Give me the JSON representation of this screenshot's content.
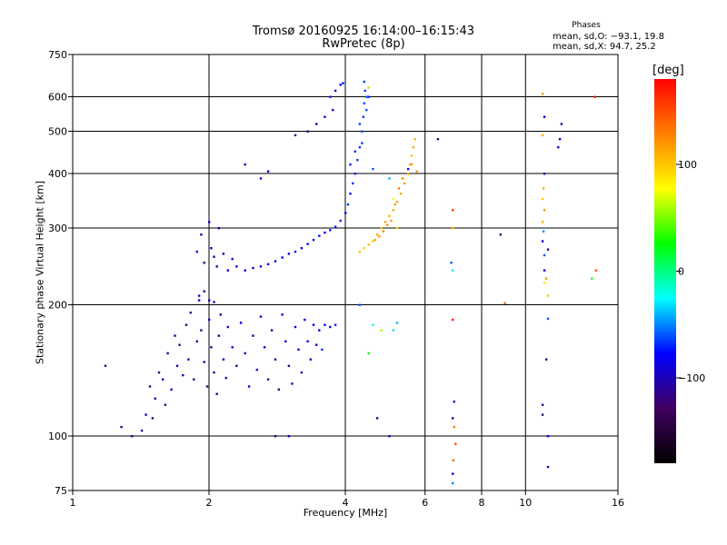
{
  "header": {
    "title_line1": "Tromsø 20160925 16:14:00–16:15:43",
    "title_line2": "RwPretec (8p)"
  },
  "phase_info": {
    "heading": "Phases",
    "o_line": "mean, sd,O:  −93.1, 19.8",
    "x_line": "mean, sd,X:  94.7, 25.2"
  },
  "colorbar": {
    "label": "[deg]",
    "range": [
      -180,
      180
    ],
    "ticks": [
      "100",
      "0",
      "−100"
    ],
    "tick_values": [
      100,
      0,
      -100
    ],
    "colors": [
      "#ff0000",
      "#ff8000",
      "#ffff00",
      "#00ff00",
      "#00ffff",
      "#0000ff",
      "#400060",
      "#000000"
    ]
  },
  "chart_data": {
    "type": "scatter",
    "xlabel": "Frequency [MHz]",
    "ylabel": "Stationary phase Virtual Height [km]",
    "x_scale": "log",
    "y_scale": "log",
    "xlim": [
      1,
      16
    ],
    "ylim": [
      75,
      750
    ],
    "x_ticks": [
      1,
      2,
      4,
      6,
      8,
      10,
      16
    ],
    "x_tick_labels": [
      "1",
      "2",
      "4",
      "6",
      "8",
      "10",
      "16"
    ],
    "y_ticks": [
      75,
      100,
      200,
      300,
      400,
      500,
      600,
      750
    ],
    "y_tick_labels": [
      "75",
      "100",
      "200",
      "300",
      "400",
      "500",
      "600",
      "750"
    ],
    "grid": true,
    "series": [
      {
        "values_format": "[frequency_MHz, virtual_height_km, phase_deg]",
        "points": [
          [
            1.18,
            145,
            -115
          ],
          [
            1.28,
            105,
            -110
          ],
          [
            1.35,
            100,
            -120
          ],
          [
            1.42,
            103,
            -105
          ],
          [
            1.45,
            112,
            -95
          ],
          [
            1.48,
            130,
            -110
          ],
          [
            1.5,
            110,
            -125
          ],
          [
            1.52,
            122,
            -100
          ],
          [
            1.55,
            140,
            -112
          ],
          [
            1.58,
            135,
            -95
          ],
          [
            1.6,
            118,
            -120
          ],
          [
            1.62,
            155,
            -108
          ],
          [
            1.65,
            128,
            -102
          ],
          [
            1.68,
            170,
            -115
          ],
          [
            1.7,
            145,
            -98
          ],
          [
            1.72,
            162,
            -122
          ],
          [
            1.75,
            138,
            -100
          ],
          [
            1.78,
            180,
            -118
          ],
          [
            1.8,
            150,
            -95
          ],
          [
            1.82,
            192,
            -110
          ],
          [
            1.85,
            135,
            -125
          ],
          [
            1.88,
            165,
            -104
          ],
          [
            1.9,
            205,
            -90
          ],
          [
            1.92,
            175,
            -112
          ],
          [
            1.95,
            148,
            -100
          ],
          [
            1.98,
            130,
            -118
          ],
          [
            2.0,
            185,
            -96
          ],
          [
            2.02,
            160,
            -108
          ],
          [
            2.05,
            140,
            -102
          ],
          [
            2.08,
            125,
            -115
          ],
          [
            2.1,
            170,
            -99
          ],
          [
            2.12,
            190,
            -106
          ],
          [
            2.15,
            150,
            -92
          ],
          [
            2.18,
            136,
            -110
          ],
          [
            2.2,
            178,
            -100
          ],
          [
            2.25,
            160,
            -95
          ],
          [
            2.3,
            145,
            -108
          ],
          [
            2.35,
            182,
            -90
          ],
          [
            2.4,
            155,
            -102
          ],
          [
            2.45,
            130,
            -96
          ],
          [
            2.5,
            170,
            -112
          ],
          [
            2.55,
            142,
            -88
          ],
          [
            2.6,
            188,
            -100
          ],
          [
            2.65,
            160,
            -94
          ],
          [
            2.7,
            135,
            -106
          ],
          [
            2.75,
            175,
            -90
          ],
          [
            2.8,
            150,
            -98
          ],
          [
            2.85,
            128,
            -104
          ],
          [
            2.9,
            190,
            -92
          ],
          [
            2.95,
            165,
            -88
          ],
          [
            3.0,
            145,
            -100
          ],
          [
            3.05,
            132,
            -96
          ],
          [
            3.1,
            178,
            -84
          ],
          [
            3.15,
            158,
            -92
          ],
          [
            3.2,
            140,
            -98
          ],
          [
            3.25,
            185,
            -80
          ],
          [
            3.3,
            165,
            -90
          ],
          [
            3.35,
            150,
            -86
          ],
          [
            3.4,
            180,
            -78
          ],
          [
            3.45,
            162,
            -88
          ],
          [
            3.5,
            175,
            -82
          ],
          [
            3.55,
            158,
            -70
          ],
          [
            3.6,
            180,
            -75
          ],
          [
            3.7,
            178,
            -80
          ],
          [
            3.8,
            180,
            -72
          ],
          [
            1.9,
            210,
            -98
          ],
          [
            2.0,
            205,
            -104
          ],
          [
            1.95,
            215,
            -110
          ],
          [
            2.05,
            203,
            -100
          ],
          [
            1.88,
            265,
            -100
          ],
          [
            1.92,
            290,
            -95
          ],
          [
            1.95,
            250,
            -108
          ],
          [
            2.0,
            310,
            -92
          ],
          [
            2.02,
            270,
            -102
          ],
          [
            2.05,
            258,
            -98
          ],
          [
            2.08,
            245,
            -96
          ],
          [
            2.1,
            300,
            -90
          ],
          [
            2.15,
            262,
            -100
          ],
          [
            2.2,
            240,
            -94
          ],
          [
            2.25,
            255,
            -88
          ],
          [
            2.3,
            245,
            -92
          ],
          [
            2.4,
            240,
            -86
          ],
          [
            2.5,
            243,
            -90
          ],
          [
            2.6,
            245,
            -84
          ],
          [
            2.7,
            248,
            -82
          ],
          [
            2.8,
            252,
            -86
          ],
          [
            2.9,
            257,
            -80
          ],
          [
            3.0,
            262,
            -84
          ],
          [
            3.1,
            265,
            -78
          ],
          [
            3.2,
            270,
            -82
          ],
          [
            3.3,
            276,
            -76
          ],
          [
            3.4,
            282,
            -80
          ],
          [
            3.5,
            288,
            -74
          ],
          [
            3.6,
            293,
            -78
          ],
          [
            3.7,
            297,
            -72
          ],
          [
            3.8,
            302,
            -76
          ],
          [
            3.9,
            312,
            -70
          ],
          [
            4.0,
            325,
            -74
          ],
          [
            4.05,
            340,
            -68
          ],
          [
            4.1,
            360,
            -72
          ],
          [
            4.15,
            380,
            -66
          ],
          [
            4.2,
            400,
            -70
          ],
          [
            4.25,
            430,
            -64
          ],
          [
            4.3,
            460,
            -68
          ],
          [
            4.35,
            500,
            -62
          ],
          [
            4.38,
            540,
            -66
          ],
          [
            4.4,
            580,
            -60
          ],
          [
            4.42,
            620,
            -64
          ],
          [
            4.45,
            600,
            -58
          ],
          [
            4.1,
            420,
            -70
          ],
          [
            4.2,
            450,
            -66
          ],
          [
            4.3,
            520,
            -62
          ],
          [
            4.45,
            560,
            -60
          ],
          [
            4.35,
            470,
            -64
          ],
          [
            4.3,
            265,
            100
          ],
          [
            4.4,
            270,
            95
          ],
          [
            4.5,
            275,
            105
          ],
          [
            4.6,
            280,
            98
          ],
          [
            4.7,
            290,
            110
          ],
          [
            4.8,
            300,
            102
          ],
          [
            4.9,
            310,
            115
          ],
          [
            5.0,
            320,
            108
          ],
          [
            5.1,
            330,
            112
          ],
          [
            5.2,
            345,
            118
          ],
          [
            5.3,
            360,
            110
          ],
          [
            5.4,
            380,
            120
          ],
          [
            5.5,
            400,
            115
          ],
          [
            5.55,
            420,
            108
          ],
          [
            5.6,
            440,
            100
          ],
          [
            5.65,
            460,
            112
          ],
          [
            5.7,
            480,
            105
          ],
          [
            5.75,
            405,
            118
          ],
          [
            5.35,
            390,
            125
          ],
          [
            5.25,
            370,
            130
          ],
          [
            5.15,
            340,
            122
          ],
          [
            5.05,
            312,
            118
          ],
          [
            4.95,
            305,
            125
          ],
          [
            4.85,
            295,
            128
          ],
          [
            4.75,
            287,
            118
          ],
          [
            4.65,
            282,
            112
          ],
          [
            3.95,
            645,
            -75
          ],
          [
            4.4,
            650,
            -68
          ],
          [
            4.5,
            630,
            60
          ],
          [
            4.5,
            600,
            -70
          ],
          [
            3.9,
            640,
            -80
          ],
          [
            3.1,
            490,
            -120
          ],
          [
            3.3,
            500,
            -110
          ],
          [
            3.45,
            520,
            -100
          ],
          [
            3.6,
            540,
            -95
          ],
          [
            3.75,
            560,
            -90
          ],
          [
            2.4,
            420,
            -105
          ],
          [
            2.7,
            405,
            -95
          ],
          [
            2.6,
            390,
            -80
          ],
          [
            3.8,
            620,
            -85
          ],
          [
            3.7,
            600,
            -72
          ],
          [
            4.6,
            410,
            -60
          ],
          [
            5.0,
            390,
            -40
          ],
          [
            5.1,
            350,
            80
          ],
          [
            5.2,
            300,
            90
          ],
          [
            5.5,
            410,
            -75
          ],
          [
            5.6,
            420,
            120
          ],
          [
            6.4,
            480,
            -115
          ],
          [
            6.9,
            330,
            160
          ],
          [
            6.9,
            300,
            110
          ],
          [
            6.85,
            250,
            -60
          ],
          [
            6.9,
            240,
            -30
          ],
          [
            6.9,
            185,
            170
          ],
          [
            6.95,
            120,
            -100
          ],
          [
            6.9,
            110,
            -110
          ],
          [
            6.95,
            105,
            130
          ],
          [
            7.0,
            96,
            150
          ],
          [
            6.92,
            88,
            140
          ],
          [
            6.9,
            82,
            -90
          ],
          [
            6.9,
            78,
            -50
          ],
          [
            8.8,
            290,
            -120
          ],
          [
            9.0,
            202,
            140
          ],
          [
            10.9,
            610,
            120
          ],
          [
            11.0,
            540,
            -90
          ],
          [
            10.9,
            490,
            110
          ],
          [
            11.0,
            400,
            -100
          ],
          [
            10.95,
            370,
            110
          ],
          [
            10.9,
            350,
            100
          ],
          [
            11.0,
            330,
            120
          ],
          [
            10.9,
            310,
            110
          ],
          [
            10.95,
            295,
            -50
          ],
          [
            10.9,
            280,
            -90
          ],
          [
            11.0,
            260,
            -60
          ],
          [
            11.2,
            268,
            -120
          ],
          [
            11.0,
            240,
            -90
          ],
          [
            11.1,
            230,
            120
          ],
          [
            11.0,
            225,
            90
          ],
          [
            11.2,
            210,
            100
          ],
          [
            11.2,
            186,
            -60
          ],
          [
            11.1,
            150,
            -100
          ],
          [
            10.9,
            118,
            -110
          ],
          [
            10.9,
            112,
            -120
          ],
          [
            11.2,
            100,
            -80
          ],
          [
            11.2,
            85,
            -110
          ],
          [
            12.0,
            520,
            -110
          ],
          [
            11.9,
            480,
            -80
          ],
          [
            11.8,
            460,
            -90
          ],
          [
            14.3,
            240,
            150
          ],
          [
            14.2,
            600,
            170
          ],
          [
            14.0,
            230,
            30
          ],
          [
            4.3,
            200,
            -60
          ],
          [
            4.6,
            180,
            -20
          ],
          [
            4.8,
            175,
            60
          ],
          [
            5.1,
            175,
            -30
          ],
          [
            5.2,
            182,
            -40
          ],
          [
            4.5,
            155,
            30
          ],
          [
            4.7,
            110,
            -110
          ],
          [
            5.0,
            100,
            -100
          ],
          [
            2.8,
            100,
            -100
          ],
          [
            3.0,
            100,
            -90
          ]
        ]
      }
    ]
  }
}
